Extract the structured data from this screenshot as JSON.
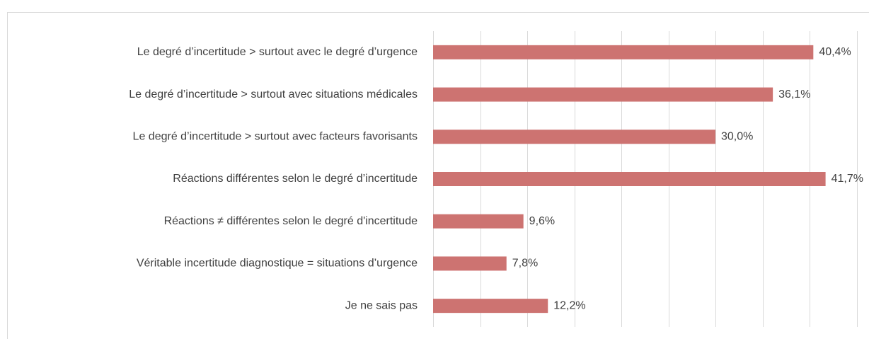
{
  "chart_data": {
    "type": "bar",
    "orientation": "horizontal",
    "categories": [
      "Le degré d’incertitude > surtout avec le degré d’urgence",
      "Le degré d’incertitude > surtout avec situations médicales",
      "Le degré d’incertitude > surtout avec facteurs favorisants",
      "Réactions différentes selon le degré d’incertitude",
      "Réactions ≠ différentes selon le degré d'incertitude",
      "Véritable incertitude diagnostique = situations d’urgence",
      "Je ne sais pas"
    ],
    "values": [
      40.4,
      36.1,
      30.0,
      41.7,
      9.6,
      7.8,
      12.2
    ],
    "value_labels": [
      "40,4%",
      "36,1%",
      "30,0%",
      "41,7%",
      "9,6%",
      "7,8%",
      "12,2%"
    ],
    "color": "#cd7371",
    "xlim": [
      0,
      45
    ],
    "xticks": [
      0,
      5,
      10,
      15,
      20,
      25,
      30,
      35,
      40,
      45
    ],
    "grid": true
  }
}
